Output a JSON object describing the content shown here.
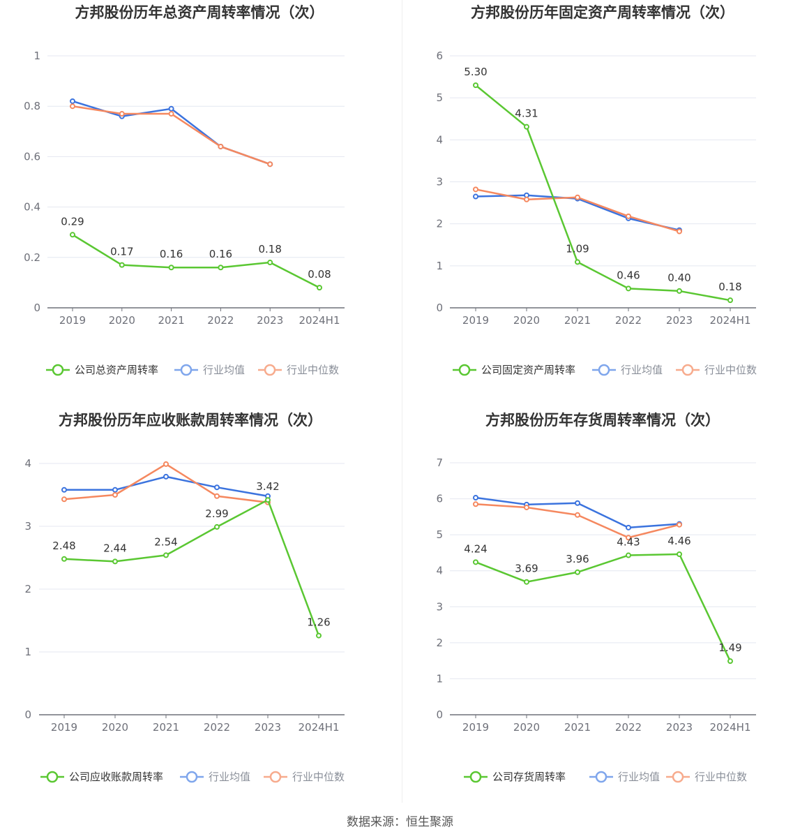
{
  "colors": {
    "company": "#5ac732",
    "avg": "#3b73de",
    "median": "#f5885f",
    "legend_avg": "#7fa6ec",
    "legend_median": "#f7ab8d",
    "grid": "#e4e7f0",
    "axis": "#6e7079"
  },
  "chart_data": [
    {
      "type": "line",
      "title": "方邦股份历年总资产周转率情况（次）",
      "categories": [
        "2019",
        "2020",
        "2021",
        "2022",
        "2023",
        "2024H1"
      ],
      "ylim": [
        0,
        1
      ],
      "yticks": [
        "0",
        "0.2",
        "0.4",
        "0.6",
        "0.8",
        "1"
      ],
      "ytick_values": [
        0,
        0.2,
        0.4,
        0.6,
        0.8,
        1
      ],
      "series": [
        {
          "name": "公司总资产周转率",
          "values": [
            0.29,
            0.17,
            0.16,
            0.16,
            0.18,
            0.08
          ],
          "labels": [
            "0.29",
            "0.17",
            "0.16",
            "0.16",
            "0.18",
            "0.08"
          ]
        },
        {
          "name": "行业均值",
          "values": [
            0.82,
            0.76,
            0.79,
            0.64,
            0.57,
            null
          ]
        },
        {
          "name": "行业中位数",
          "values": [
            0.8,
            0.77,
            0.77,
            0.64,
            0.57,
            null
          ]
        }
      ]
    },
    {
      "type": "line",
      "title": "方邦股份历年固定资产周转率情况（次）",
      "categories": [
        "2019",
        "2020",
        "2021",
        "2022",
        "2023",
        "2024H1"
      ],
      "ylim": [
        0,
        6
      ],
      "yticks": [
        "0",
        "1",
        "2",
        "3",
        "4",
        "5",
        "6"
      ],
      "ytick_values": [
        0,
        1,
        2,
        3,
        4,
        5,
        6
      ],
      "series": [
        {
          "name": "公司固定资产周转率",
          "values": [
            5.3,
            4.31,
            1.09,
            0.46,
            0.4,
            0.18
          ],
          "labels": [
            "5.30",
            "4.31",
            "1.09",
            "0.46",
            "0.40",
            "0.18"
          ]
        },
        {
          "name": "行业均值",
          "values": [
            2.65,
            2.68,
            2.6,
            2.13,
            1.85,
            null
          ]
        },
        {
          "name": "行业中位数",
          "values": [
            2.82,
            2.58,
            2.63,
            2.18,
            1.82,
            null
          ]
        }
      ]
    },
    {
      "type": "line",
      "title": "方邦股份历年应收账款周转率情况（次）",
      "categories": [
        "2019",
        "2020",
        "2021",
        "2022",
        "2023",
        "2024H1"
      ],
      "ylim": [
        0,
        4
      ],
      "yticks": [
        "0",
        "1",
        "2",
        "3",
        "4"
      ],
      "ytick_values": [
        0,
        1,
        2,
        3,
        4
      ],
      "series": [
        {
          "name": "公司应收账款周转率",
          "values": [
            2.48,
            2.44,
            2.54,
            2.99,
            3.42,
            1.26
          ],
          "labels": [
            "2.48",
            "2.44",
            "2.54",
            "2.99",
            "3.42",
            "1.26"
          ]
        },
        {
          "name": "行业均值",
          "values": [
            3.58,
            3.58,
            3.79,
            3.62,
            3.48,
            null
          ]
        },
        {
          "name": "行业中位数",
          "values": [
            3.43,
            3.5,
            3.99,
            3.48,
            3.38,
            null
          ]
        }
      ]
    },
    {
      "type": "line",
      "title": "方邦股份历年存货周转率情况（次）",
      "categories": [
        "2019",
        "2020",
        "2021",
        "2022",
        "2023",
        "2024H1"
      ],
      "ylim": [
        0,
        7
      ],
      "yticks": [
        "0",
        "1",
        "2",
        "3",
        "4",
        "5",
        "6",
        "7"
      ],
      "ytick_values": [
        0,
        1,
        2,
        3,
        4,
        5,
        6,
        7
      ],
      "series": [
        {
          "name": "公司存货周转率",
          "values": [
            4.24,
            3.69,
            3.96,
            4.43,
            4.46,
            1.49
          ],
          "labels": [
            "4.24",
            "3.69",
            "3.96",
            "4.43",
            "4.46",
            "1.49"
          ]
        },
        {
          "name": "行业均值",
          "values": [
            6.03,
            5.84,
            5.88,
            5.2,
            5.3,
            null
          ]
        },
        {
          "name": "行业中位数",
          "values": [
            5.85,
            5.76,
            5.55,
            4.92,
            5.28,
            null
          ]
        }
      ]
    }
  ],
  "footer": {
    "source": "数据来源：恒生聚源"
  }
}
